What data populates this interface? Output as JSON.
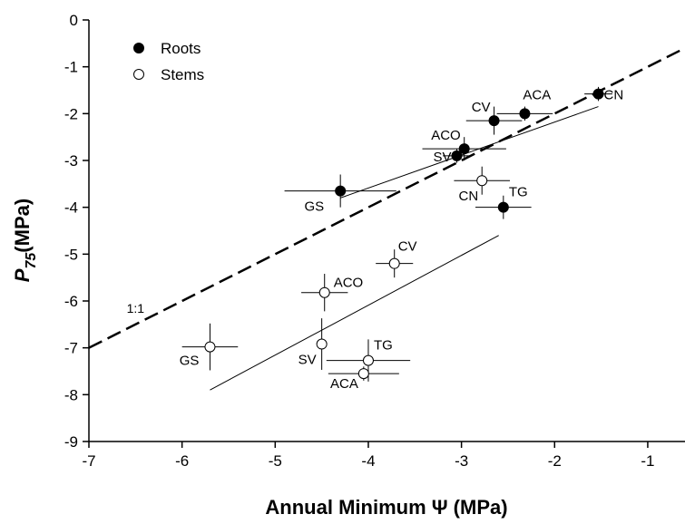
{
  "chart_data": {
    "type": "scatter",
    "title": "",
    "xlabel": "Annual Minimum Ψ (MPa)",
    "ylabel": {
      "main": "P",
      "sub": "75",
      "rest": "(MPa)"
    },
    "xlim": [
      -7,
      -0.6
    ],
    "ylim": [
      -9,
      0
    ],
    "xticks": [
      -7,
      -6,
      -5,
      -4,
      -3,
      -2,
      -1
    ],
    "yticks": [
      0,
      -1,
      -2,
      -3,
      -4,
      -5,
      -6,
      -7,
      -8,
      -9
    ],
    "legend": {
      "position": "top-left",
      "entries": [
        {
          "name": "Roots",
          "marker": "filled-circle"
        },
        {
          "name": "Stems",
          "marker": "open-circle"
        }
      ]
    },
    "series": [
      {
        "name": "Roots",
        "marker": "filled",
        "points": [
          {
            "label": "GS",
            "x": -4.3,
            "y": -3.65,
            "xerr": 0.6,
            "yerr": 0.35
          },
          {
            "label": "SV",
            "x": -3.05,
            "y": -2.9,
            "xerr": 0.15,
            "yerr": 0.15
          },
          {
            "label": "ACO",
            "x": -2.97,
            "y": -2.75,
            "xerr": 0.45,
            "yerr": 0.25
          },
          {
            "label": "CV",
            "x": -2.65,
            "y": -2.15,
            "xerr": 0.3,
            "yerr": 0.3
          },
          {
            "label": "ACA",
            "x": -2.32,
            "y": -2.0,
            "xerr": 0.3,
            "yerr": 0.15
          },
          {
            "label": "CN",
            "x": -1.53,
            "y": -1.58,
            "xerr": 0.15,
            "yerr": 0.15
          },
          {
            "label": "TG",
            "x": -2.55,
            "y": -4.0,
            "xerr": 0.3,
            "yerr": 0.25
          }
        ]
      },
      {
        "name": "Stems",
        "marker": "open",
        "points": [
          {
            "label": "GS",
            "x": -5.7,
            "y": -6.98,
            "xerr": 0.3,
            "yerr": 0.5
          },
          {
            "label": "ACO",
            "x": -4.47,
            "y": -5.82,
            "xerr": 0.25,
            "yerr": 0.4
          },
          {
            "label": "CV",
            "x": -3.72,
            "y": -5.2,
            "xerr": 0.2,
            "yerr": 0.3
          },
          {
            "label": "CN",
            "x": -2.78,
            "y": -3.43,
            "xerr": 0.3,
            "yerr": 0.3
          },
          {
            "label": "SV",
            "x": -4.5,
            "y": -6.92,
            "xerr": 0.05,
            "yerr": 0.55
          },
          {
            "label": "TG",
            "x": -4.0,
            "y": -7.27,
            "xerr": 0.45,
            "yerr": 0.45
          },
          {
            "label": "ACA",
            "x": -4.05,
            "y": -7.55,
            "xerr": 0.38,
            "yerr": 0.15
          }
        ]
      }
    ],
    "lines": [
      {
        "name": "1:1",
        "style": "dashed",
        "x": [
          -7,
          -0.6
        ],
        "y": [
          -7,
          -0.6
        ]
      },
      {
        "name": "Roots fit",
        "style": "solid",
        "x": [
          -4.3,
          -1.53
        ],
        "y": [
          -3.8,
          -1.85
        ]
      },
      {
        "name": "Stems fit",
        "style": "solid",
        "x": [
          -5.7,
          -2.6
        ],
        "y": [
          -7.9,
          -4.6
        ]
      }
    ],
    "annotations": [
      {
        "text": "1:1",
        "x": -6.5,
        "y": -6.25
      }
    ]
  }
}
